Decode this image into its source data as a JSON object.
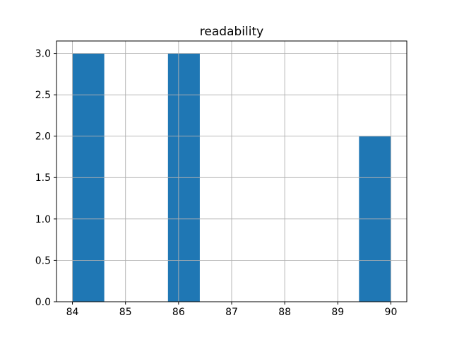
{
  "chart_data": {
    "type": "bar",
    "subtype": "histogram",
    "title": "readability",
    "xlabel": "",
    "ylabel": "",
    "bins": [
      {
        "x0": 84.0,
        "x1": 84.6,
        "count": 3
      },
      {
        "x0": 85.8,
        "x1": 86.4,
        "count": 3
      },
      {
        "x0": 89.4,
        "x1": 90.0,
        "count": 2
      }
    ],
    "xlim": [
      83.7,
      90.3
    ],
    "ylim": [
      0,
      3.15
    ],
    "xticks": [
      84,
      85,
      86,
      87,
      88,
      89,
      90
    ],
    "xtick_labels": [
      "84",
      "85",
      "86",
      "87",
      "88",
      "89",
      "90"
    ],
    "yticks": [
      0.0,
      0.5,
      1.0,
      1.5,
      2.0,
      2.5,
      3.0
    ],
    "ytick_labels": [
      "0.0",
      "0.5",
      "1.0",
      "1.5",
      "2.0",
      "2.5",
      "3.0"
    ],
    "grid": true,
    "grid_above_bars": true,
    "legend_position": "none",
    "colors": {
      "bar_fill": "#1f77b4",
      "grid_line": "#b0b0b0",
      "axis_line": "#000000",
      "tick_text": "#000000",
      "background": "#ffffff"
    }
  }
}
